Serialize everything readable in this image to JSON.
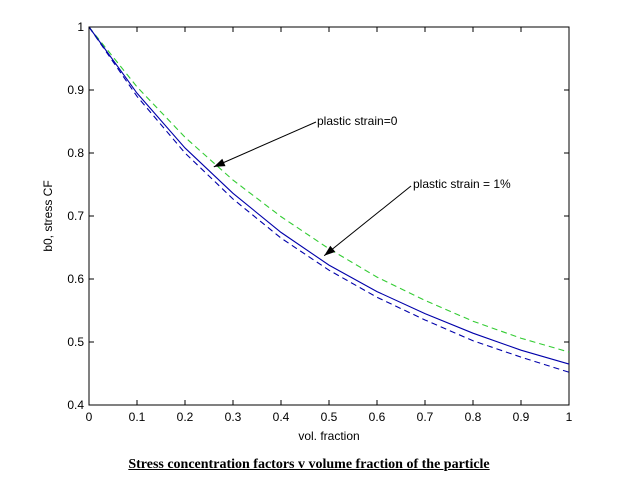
{
  "caption": "Stress concentration factors v volume fraction of the particle",
  "chart_data": {
    "type": "line",
    "xlabel": "vol. fraction",
    "ylabel": "b0, stress CF",
    "xlim": [
      0,
      1
    ],
    "ylim": [
      0.4,
      1
    ],
    "xticks": [
      0,
      0.1,
      0.2,
      0.3,
      0.4,
      0.5,
      0.6,
      0.7,
      0.8,
      0.9,
      1
    ],
    "xtick_labels": [
      "0",
      "0.1",
      "0.2",
      "0.3",
      "0.4",
      "0.5",
      "0.6",
      "0.7",
      "0.8",
      "0.9",
      "1"
    ],
    "yticks": [
      0.4,
      0.5,
      0.6,
      0.7,
      0.8,
      0.9,
      1
    ],
    "ytick_labels": [
      "0.4",
      "0.5",
      "0.6",
      "0.7",
      "0.8",
      "0.9",
      "1"
    ],
    "grid": false,
    "x": [
      0,
      0.1,
      0.2,
      0.3,
      0.4,
      0.5,
      0.6,
      0.7,
      0.8,
      0.9,
      1
    ],
    "series": [
      {
        "color": "#33cc33",
        "dash": "dashed",
        "values": [
          1.0,
          0.905,
          0.825,
          0.757,
          0.699,
          0.648,
          0.603,
          0.566,
          0.533,
          0.506,
          0.484
        ]
      },
      {
        "color": "#0000aa",
        "dash": "solid",
        "values": [
          1.0,
          0.895,
          0.808,
          0.736,
          0.674,
          0.622,
          0.58,
          0.545,
          0.514,
          0.487,
          0.465
        ]
      },
      {
        "color": "#0000aa",
        "dash": "dashed",
        "values": [
          1.0,
          0.89,
          0.8,
          0.727,
          0.665,
          0.614,
          0.571,
          0.535,
          0.502,
          0.476,
          0.452
        ]
      }
    ],
    "annotations": [
      {
        "text": "plastic strain=0",
        "point": [
          0.26,
          0.778
        ]
      },
      {
        "text": "plastic strain = 1%",
        "point": [
          0.49,
          0.637
        ]
      }
    ]
  }
}
